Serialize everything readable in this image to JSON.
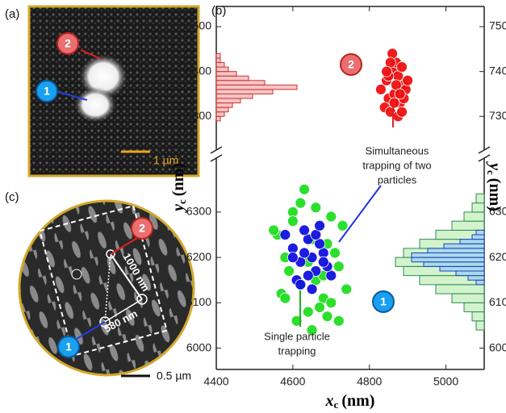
{
  "panel_a": {
    "label": "(a)",
    "markers": [
      "2",
      "1"
    ],
    "scale_bar": "1 µm"
  },
  "panel_c": {
    "label": "(c)",
    "markers": [
      "2",
      "1"
    ],
    "distances": [
      "1000 nm",
      "580 nm"
    ],
    "scale_bar": "0.5 µm"
  },
  "chart_data": {
    "type": "scatter",
    "panel_label": "(b)",
    "x_label": {
      "symbol": "x",
      "subscript": "c",
      "unit": "(nm)"
    },
    "y_label": {
      "symbol": "y",
      "subscript": "c",
      "unit": "(nm)"
    },
    "xlim": [
      4400,
      5100
    ],
    "xticks": [
      4400,
      4600,
      4800,
      5000
    ],
    "y_segments": [
      {
        "ylim": [
          7225,
          7545
        ],
        "yticks": [
          7300,
          7400,
          7500
        ]
      },
      {
        "ylim": [
          5953,
          6419
        ],
        "yticks": [
          6000,
          6100,
          6200,
          6300
        ]
      }
    ],
    "series": [
      {
        "color": "#ee1111",
        "segment": 0,
        "x": [
          4830,
          4845,
          4860,
          4875,
          4890,
          4850,
          4865,
          4880,
          4895,
          4840,
          4855,
          4870,
          4885,
          4900,
          4860,
          4875,
          4850,
          4890,
          4870,
          4880,
          4855,
          4865,
          4845,
          4885
        ],
        "y": [
          7360,
          7380,
          7400,
          7390,
          7370,
          7340,
          7350,
          7330,
          7360,
          7320,
          7310,
          7420,
          7410,
          7380,
          7440,
          7300,
          7390,
          7340,
          7370,
          7350,
          7420,
          7330,
          7400,
          7310
        ]
      },
      {
        "color": "#22dd22",
        "segment": 1,
        "x": [
          4560,
          4580,
          4600,
          4620,
          4640,
          4660,
          4680,
          4700,
          4720,
          4740,
          4570,
          4610,
          4650,
          4690,
          4730,
          4590,
          4630,
          4670,
          4710,
          4550,
          4620,
          4660,
          4700,
          4640,
          4680,
          4600,
          4580,
          4720,
          4650,
          4690
        ],
        "y": [
          6250,
          6200,
          6300,
          6320,
          6080,
          6150,
          6110,
          6290,
          6180,
          6130,
          6120,
          6060,
          6040,
          6230,
          6270,
          6170,
          6350,
          6090,
          6210,
          6260,
          6140,
          6310,
          6100,
          6190,
          6160,
          6280,
          6110,
          6060,
          6240,
          6070
        ]
      },
      {
        "color": "#1111dd",
        "segment": 1,
        "x": [
          4580,
          4600,
          4620,
          4640,
          4660,
          4680,
          4700,
          4610,
          4630,
          4650,
          4670,
          4690,
          4620,
          4640,
          4660,
          4680,
          4600,
          4650,
          4670,
          4630
        ],
        "y": [
          6250,
          6220,
          6190,
          6240,
          6170,
          6210,
          6160,
          6150,
          6260,
          6200,
          6230,
          6180,
          6140,
          6160,
          6250,
          6190,
          6200,
          6130,
          6270,
          6210
        ]
      }
    ],
    "histograms": [
      {
        "color": "#f4b6b6",
        "edge_color": "#cc3333",
        "side": "left",
        "segment": 0,
        "bins": [
          7290,
          7300,
          7310,
          7320,
          7330,
          7340,
          7350,
          7360,
          7370,
          7380,
          7390,
          7400,
          7410,
          7420,
          7430,
          7440
        ],
        "counts": [
          1,
          2,
          3,
          4,
          6,
          9,
          14,
          20,
          12,
          8,
          5,
          3,
          2,
          1,
          1
        ]
      },
      {
        "color": "#c8f0c0",
        "edge_color": "#2e8b57",
        "side": "right",
        "segment": 1,
        "bins": [
          6040,
          6060,
          6080,
          6100,
          6120,
          6140,
          6160,
          6180,
          6200,
          6220,
          6240,
          6260,
          6280,
          6300,
          6320,
          6340
        ],
        "counts": [
          2,
          3,
          5,
          8,
          12,
          16,
          20,
          22,
          20,
          16,
          12,
          8,
          5,
          3,
          2
        ]
      },
      {
        "color": "#9fd3f0",
        "edge_color": "#1f3fbf",
        "side": "right",
        "segment": 1,
        "bins": [
          6140,
          6150,
          6160,
          6170,
          6180,
          6190,
          6200,
          6210,
          6220,
          6230,
          6240,
          6250,
          6260
        ],
        "counts": [
          2,
          4,
          7,
          11,
          15,
          18,
          18,
          14,
          10,
          6,
          3,
          2
        ]
      }
    ],
    "annotations": {
      "two_particles": [
        "Simultaneous",
        "trapping of two",
        "particles"
      ],
      "single_particle": [
        "Single particle",
        "trapping"
      ],
      "markers": [
        "2",
        "1"
      ]
    }
  }
}
